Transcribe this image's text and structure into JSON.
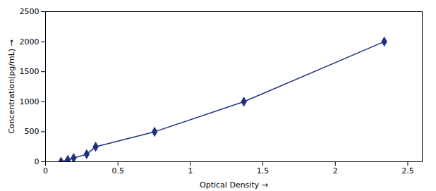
{
  "chart_data": {
    "type": "line",
    "x": [
      0.107,
      0.154,
      0.194,
      0.284,
      0.346,
      0.753,
      1.369,
      2.338
    ],
    "values": [
      0,
      31.25,
      62.5,
      125,
      250,
      500,
      1000,
      2000
    ],
    "color": "#1F3080",
    "marker": "diamond",
    "xlabel": "Optical Density",
    "ylabel": "Concentration(pg/mL)",
    "xlim": [
      0.0,
      2.6
    ],
    "ylim": [
      0,
      2500
    ],
    "xticks": [
      0,
      0.5,
      1,
      1.5,
      2,
      2.5
    ],
    "yticks": [
      0,
      500,
      1000,
      1500,
      2000,
      2500
    ]
  }
}
